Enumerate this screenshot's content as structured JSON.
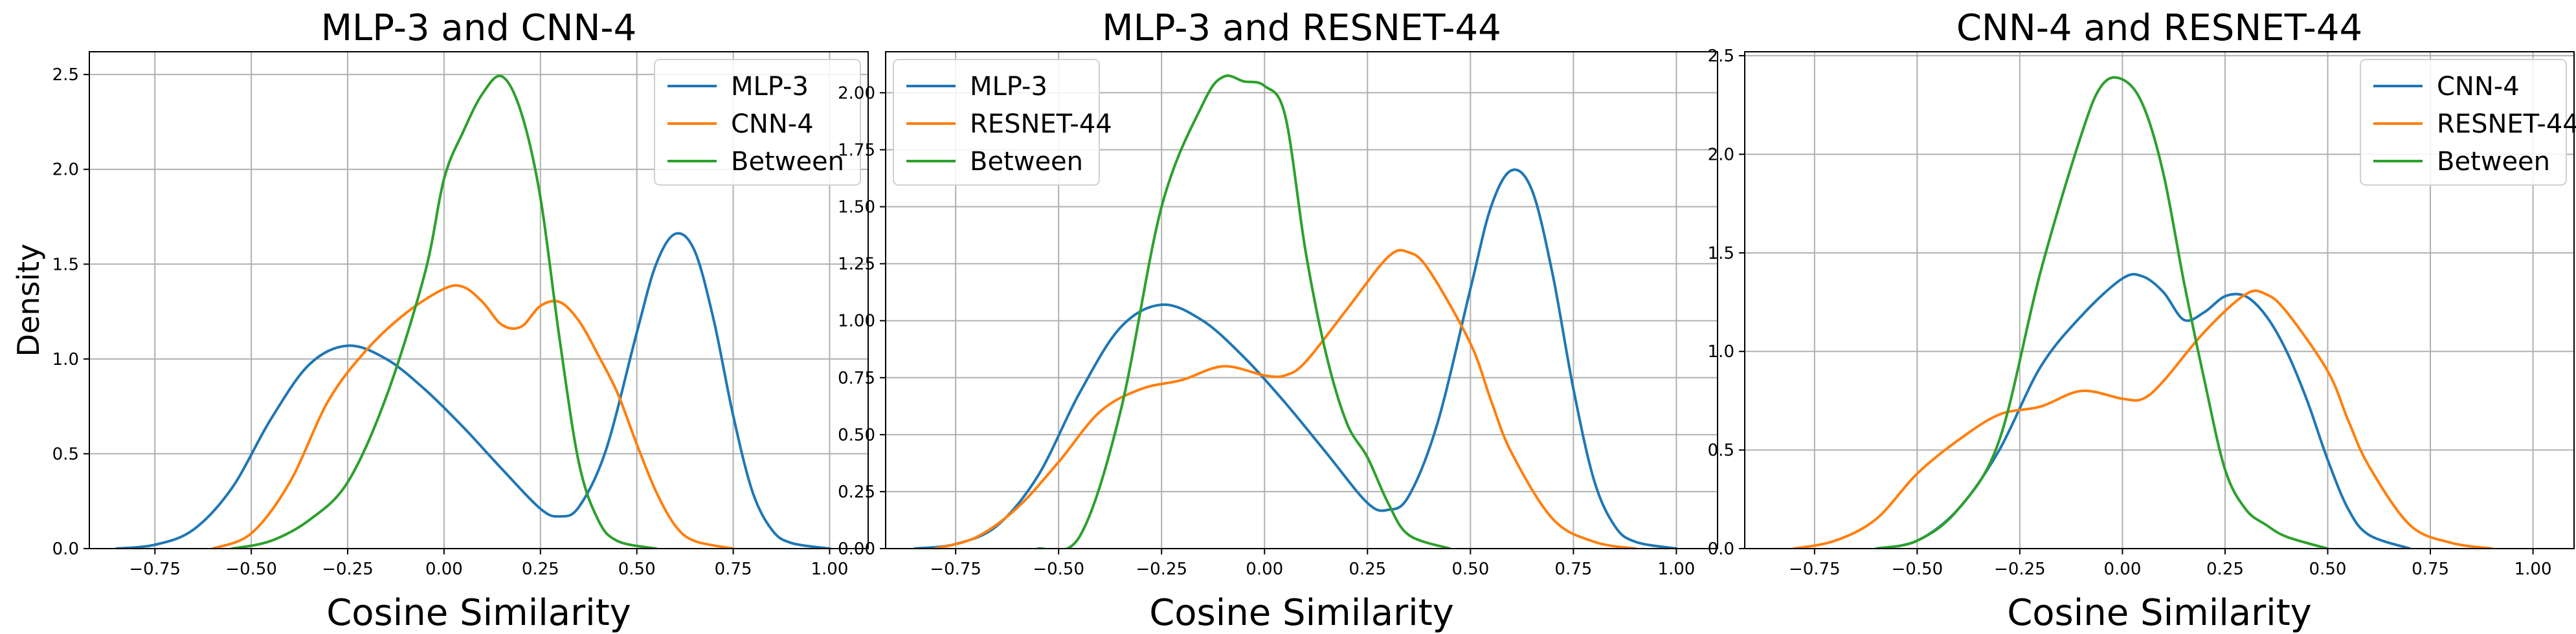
{
  "colors": {
    "blue": "#1f77b4",
    "orange": "#ff7f0e",
    "green": "#2ca02c",
    "grid": "#b0b0b0"
  },
  "chart_data": [
    {
      "type": "line",
      "title": "MLP-3 and CNN-4",
      "xlabel": "Cosine Similarity",
      "ylabel": "Density",
      "xlim": [
        -0.92,
        1.1
      ],
      "ylim": [
        0,
        2.62
      ],
      "xticks": [
        -0.75,
        -0.5,
        -0.25,
        0.0,
        0.25,
        0.5,
        0.75,
        1.0
      ],
      "xtick_labels": [
        "−0.75",
        "−0.50",
        "−0.25",
        "0.00",
        "0.25",
        "0.50",
        "0.75",
        "1.00"
      ],
      "yticks": [
        0,
        0.5,
        1.0,
        1.5,
        2.0,
        2.5
      ],
      "ytick_labels": [
        "0.0",
        "0.5",
        "1.0",
        "1.5",
        "2.0",
        "2.5"
      ],
      "grid": true,
      "legend_position": "top-right",
      "series": [
        {
          "name": "MLP-3",
          "color": "#1f77b4",
          "points": [
            [
              -0.85,
              0
            ],
            [
              -0.75,
              0.02
            ],
            [
              -0.65,
              0.1
            ],
            [
              -0.55,
              0.32
            ],
            [
              -0.45,
              0.68
            ],
            [
              -0.35,
              0.97
            ],
            [
              -0.25,
              1.07
            ],
            [
              -0.15,
              1.0
            ],
            [
              -0.05,
              0.84
            ],
            [
              0.05,
              0.64
            ],
            [
              0.15,
              0.42
            ],
            [
              0.25,
              0.21
            ],
            [
              0.3,
              0.17
            ],
            [
              0.35,
              0.22
            ],
            [
              0.42,
              0.52
            ],
            [
              0.5,
              1.14
            ],
            [
              0.55,
              1.5
            ],
            [
              0.6,
              1.66
            ],
            [
              0.65,
              1.57
            ],
            [
              0.7,
              1.2
            ],
            [
              0.75,
              0.7
            ],
            [
              0.8,
              0.3
            ],
            [
              0.85,
              0.1
            ],
            [
              0.9,
              0.03
            ],
            [
              1.0,
              0
            ]
          ]
        },
        {
          "name": "CNN-4",
          "color": "#ff7f0e",
          "points": [
            [
              -0.6,
              0
            ],
            [
              -0.5,
              0.08
            ],
            [
              -0.4,
              0.35
            ],
            [
              -0.3,
              0.78
            ],
            [
              -0.2,
              1.05
            ],
            [
              -0.1,
              1.24
            ],
            [
              0.0,
              1.37
            ],
            [
              0.05,
              1.38
            ],
            [
              0.1,
              1.3
            ],
            [
              0.15,
              1.18
            ],
            [
              0.2,
              1.17
            ],
            [
              0.25,
              1.28
            ],
            [
              0.3,
              1.3
            ],
            [
              0.35,
              1.2
            ],
            [
              0.4,
              1.02
            ],
            [
              0.45,
              0.82
            ],
            [
              0.5,
              0.55
            ],
            [
              0.55,
              0.3
            ],
            [
              0.6,
              0.12
            ],
            [
              0.65,
              0.04
            ],
            [
              0.75,
              0
            ]
          ]
        },
        {
          "name": "Between",
          "color": "#2ca02c",
          "points": [
            [
              -0.55,
              0
            ],
            [
              -0.45,
              0.04
            ],
            [
              -0.35,
              0.15
            ],
            [
              -0.25,
              0.35
            ],
            [
              -0.15,
              0.8
            ],
            [
              -0.05,
              1.45
            ],
            [
              0.0,
              1.95
            ],
            [
              0.05,
              2.2
            ],
            [
              0.1,
              2.4
            ],
            [
              0.15,
              2.49
            ],
            [
              0.2,
              2.3
            ],
            [
              0.25,
              1.85
            ],
            [
              0.3,
              1.1
            ],
            [
              0.35,
              0.45
            ],
            [
              0.4,
              0.15
            ],
            [
              0.45,
              0.04
            ],
            [
              0.55,
              0
            ]
          ]
        }
      ]
    },
    {
      "type": "line",
      "title": "MLP-3 and RESNET-44",
      "xlabel": "Cosine Similarity",
      "ylabel": "",
      "xlim": [
        -0.92,
        1.1
      ],
      "ylim": [
        0,
        2.18
      ],
      "xticks": [
        -0.75,
        -0.5,
        -0.25,
        0.0,
        0.25,
        0.5,
        0.75,
        1.0
      ],
      "xtick_labels": [
        "−0.75",
        "−0.50",
        "−0.25",
        "0.00",
        "0.25",
        "0.50",
        "0.75",
        "1.00"
      ],
      "yticks": [
        0,
        0.25,
        0.5,
        0.75,
        1.0,
        1.25,
        1.5,
        1.75,
        2.0
      ],
      "ytick_labels": [
        "0.00",
        "0.25",
        "0.50",
        "0.75",
        "1.00",
        "1.25",
        "1.50",
        "1.75",
        "2.00"
      ],
      "grid": true,
      "legend_position": "top-left",
      "series": [
        {
          "name": "MLP-3",
          "color": "#1f77b4",
          "points": [
            [
              -0.85,
              0
            ],
            [
              -0.75,
              0.02
            ],
            [
              -0.65,
              0.1
            ],
            [
              -0.55,
              0.32
            ],
            [
              -0.45,
              0.68
            ],
            [
              -0.35,
              0.97
            ],
            [
              -0.25,
              1.07
            ],
            [
              -0.15,
              1.0
            ],
            [
              -0.05,
              0.84
            ],
            [
              0.05,
              0.64
            ],
            [
              0.15,
              0.42
            ],
            [
              0.25,
              0.2
            ],
            [
              0.3,
              0.17
            ],
            [
              0.35,
              0.23
            ],
            [
              0.42,
              0.55
            ],
            [
              0.5,
              1.14
            ],
            [
              0.55,
              1.5
            ],
            [
              0.6,
              1.66
            ],
            [
              0.65,
              1.57
            ],
            [
              0.7,
              1.2
            ],
            [
              0.75,
              0.7
            ],
            [
              0.8,
              0.3
            ],
            [
              0.85,
              0.1
            ],
            [
              0.9,
              0.03
            ],
            [
              1.0,
              0
            ]
          ]
        },
        {
          "name": "RESNET-44",
          "color": "#ff7f0e",
          "points": [
            [
              -0.8,
              0
            ],
            [
              -0.7,
              0.05
            ],
            [
              -0.6,
              0.18
            ],
            [
              -0.5,
              0.38
            ],
            [
              -0.4,
              0.6
            ],
            [
              -0.3,
              0.7
            ],
            [
              -0.2,
              0.74
            ],
            [
              -0.1,
              0.8
            ],
            [
              0.0,
              0.76
            ],
            [
              0.05,
              0.76
            ],
            [
              0.1,
              0.82
            ],
            [
              0.2,
              1.05
            ],
            [
              0.3,
              1.28
            ],
            [
              0.35,
              1.3
            ],
            [
              0.4,
              1.22
            ],
            [
              0.5,
              0.9
            ],
            [
              0.55,
              0.65
            ],
            [
              0.6,
              0.42
            ],
            [
              0.7,
              0.13
            ],
            [
              0.8,
              0.03
            ],
            [
              0.9,
              0
            ]
          ]
        },
        {
          "name": "Between",
          "color": "#2ca02c",
          "points": [
            [
              -0.55,
              0
            ],
            [
              -0.45,
              0.05
            ],
            [
              -0.35,
              0.6
            ],
            [
              -0.25,
              1.5
            ],
            [
              -0.15,
              1.95
            ],
            [
              -0.1,
              2.07
            ],
            [
              -0.05,
              2.05
            ],
            [
              0.0,
              2.03
            ],
            [
              0.05,
              1.9
            ],
            [
              0.1,
              1.3
            ],
            [
              0.15,
              0.85
            ],
            [
              0.2,
              0.55
            ],
            [
              0.25,
              0.4
            ],
            [
              0.3,
              0.2
            ],
            [
              0.35,
              0.06
            ],
            [
              0.45,
              0
            ]
          ]
        }
      ]
    },
    {
      "type": "line",
      "title": "CNN-4 and RESNET-44",
      "xlabel": "Cosine Similarity",
      "ylabel": "",
      "xlim": [
        -0.92,
        1.1
      ],
      "ylim": [
        0,
        2.52
      ],
      "xticks": [
        -0.75,
        -0.5,
        -0.25,
        0.0,
        0.25,
        0.5,
        0.75,
        1.0
      ],
      "xtick_labels": [
        "−0.75",
        "−0.50",
        "−0.25",
        "0.00",
        "0.25",
        "0.50",
        "0.75",
        "1.00"
      ],
      "yticks": [
        0,
        0.5,
        1.0,
        1.5,
        2.0,
        2.5
      ],
      "ytick_labels": [
        "0.0",
        "0.5",
        "1.0",
        "1.5",
        "2.0",
        "2.5"
      ],
      "grid": true,
      "legend_position": "top-right",
      "series": [
        {
          "name": "CNN-4",
          "color": "#1f77b4",
          "points": [
            [
              -0.6,
              0
            ],
            [
              -0.5,
              0.04
            ],
            [
              -0.4,
              0.2
            ],
            [
              -0.3,
              0.5
            ],
            [
              -0.2,
              0.92
            ],
            [
              -0.1,
              1.18
            ],
            [
              0.0,
              1.37
            ],
            [
              0.05,
              1.38
            ],
            [
              0.1,
              1.3
            ],
            [
              0.15,
              1.16
            ],
            [
              0.2,
              1.2
            ],
            [
              0.25,
              1.28
            ],
            [
              0.3,
              1.28
            ],
            [
              0.35,
              1.18
            ],
            [
              0.4,
              1.0
            ],
            [
              0.45,
              0.75
            ],
            [
              0.5,
              0.45
            ],
            [
              0.55,
              0.2
            ],
            [
              0.6,
              0.07
            ],
            [
              0.7,
              0
            ]
          ]
        },
        {
          "name": "RESNET-44",
          "color": "#ff7f0e",
          "points": [
            [
              -0.8,
              0
            ],
            [
              -0.7,
              0.04
            ],
            [
              -0.6,
              0.15
            ],
            [
              -0.5,
              0.38
            ],
            [
              -0.4,
              0.55
            ],
            [
              -0.3,
              0.68
            ],
            [
              -0.2,
              0.72
            ],
            [
              -0.1,
              0.8
            ],
            [
              0.0,
              0.76
            ],
            [
              0.05,
              0.76
            ],
            [
              0.1,
              0.85
            ],
            [
              0.2,
              1.1
            ],
            [
              0.3,
              1.29
            ],
            [
              0.35,
              1.29
            ],
            [
              0.4,
              1.2
            ],
            [
              0.5,
              0.9
            ],
            [
              0.55,
              0.65
            ],
            [
              0.6,
              0.42
            ],
            [
              0.7,
              0.12
            ],
            [
              0.8,
              0.03
            ],
            [
              0.9,
              0
            ]
          ]
        },
        {
          "name": "Between",
          "color": "#2ca02c",
          "points": [
            [
              -0.6,
              0
            ],
            [
              -0.5,
              0.04
            ],
            [
              -0.4,
              0.2
            ],
            [
              -0.3,
              0.55
            ],
            [
              -0.2,
              1.4
            ],
            [
              -0.1,
              2.1
            ],
            [
              -0.05,
              2.35
            ],
            [
              0.0,
              2.38
            ],
            [
              0.05,
              2.25
            ],
            [
              0.1,
              1.9
            ],
            [
              0.15,
              1.35
            ],
            [
              0.2,
              0.85
            ],
            [
              0.25,
              0.4
            ],
            [
              0.3,
              0.2
            ],
            [
              0.35,
              0.12
            ],
            [
              0.4,
              0.06
            ],
            [
              0.5,
              0
            ]
          ]
        }
      ]
    }
  ]
}
